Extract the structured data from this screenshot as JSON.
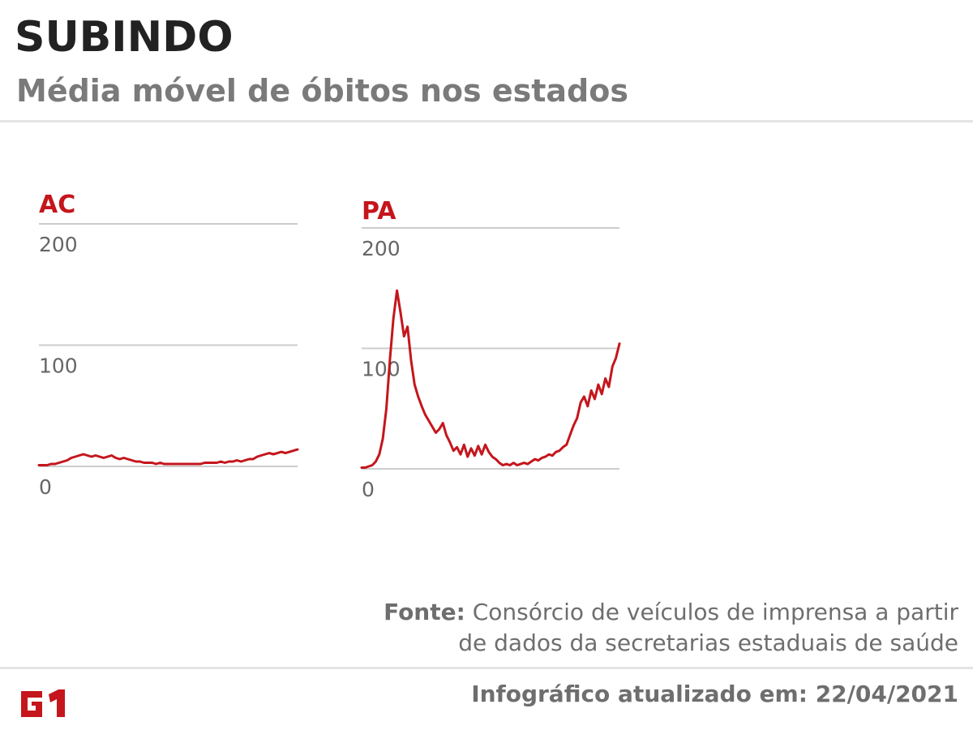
{
  "header": {
    "title": "SUBINDO",
    "subtitle": "Média móvel de óbitos nos estados"
  },
  "colors": {
    "line": "#c4161c",
    "grid": "#cccccc",
    "title": "#222222",
    "muted": "#6e6e6e"
  },
  "chart_data": [
    {
      "type": "line",
      "title": "AC",
      "ylim": [
        0,
        200
      ],
      "yticks": [
        "0",
        "100",
        "200"
      ],
      "grid": true,
      "series": [
        {
          "values": [
            1,
            1,
            1,
            2,
            2,
            3,
            4,
            5,
            7,
            8,
            9,
            10,
            9,
            8,
            9,
            8,
            7,
            8,
            9,
            7,
            6,
            7,
            6,
            5,
            4,
            4,
            3,
            3,
            3,
            2,
            3,
            2,
            2,
            2,
            2,
            2,
            2,
            2,
            2,
            2,
            2,
            3,
            3,
            3,
            3,
            4,
            3,
            4,
            4,
            5,
            4,
            5,
            6,
            6,
            8,
            9,
            10,
            11,
            10,
            11,
            12,
            11,
            12,
            13,
            14
          ]
        }
      ]
    },
    {
      "type": "line",
      "title": "PA",
      "ylim": [
        0,
        200
      ],
      "yticks": [
        "0",
        "100",
        "200"
      ],
      "grid": true,
      "series": [
        {
          "values": [
            1,
            1,
            2,
            3,
            6,
            12,
            25,
            50,
            90,
            125,
            148,
            130,
            110,
            118,
            90,
            70,
            60,
            52,
            45,
            40,
            35,
            30,
            33,
            38,
            28,
            22,
            15,
            18,
            12,
            20,
            10,
            17,
            11,
            19,
            12,
            20,
            14,
            10,
            8,
            5,
            3,
            4,
            3,
            5,
            3,
            4,
            5,
            4,
            6,
            8,
            7,
            9,
            10,
            12,
            11,
            14,
            15,
            18,
            20,
            28,
            36,
            42,
            55,
            60,
            52,
            65,
            58,
            70,
            62,
            75,
            68,
            85,
            92,
            104
          ]
        }
      ]
    }
  ],
  "footer": {
    "source_label": "Fonte:",
    "source_text": "Consórcio de veículos de imprensa a partir de dados da secretarias estaduais de saúde",
    "updated_label": "Infográfico atualizado em:",
    "updated_date": "22/04/2021"
  }
}
